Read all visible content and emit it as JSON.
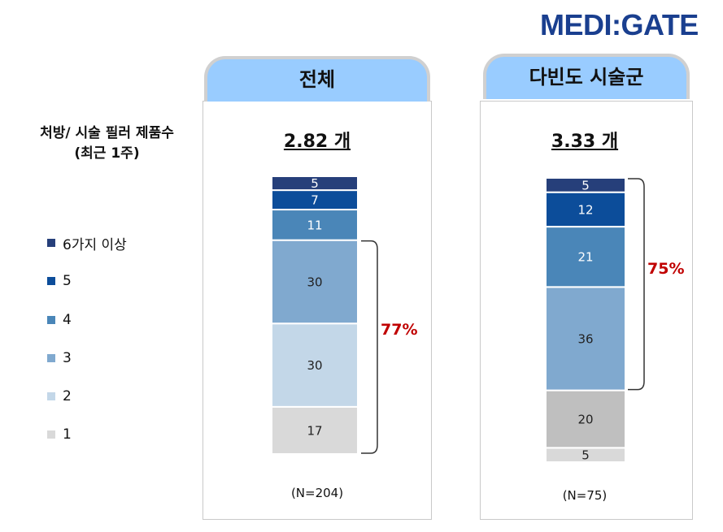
{
  "logo": "MEDI:GATE",
  "left_title": {
    "line1": "처방/ 시술 필러 제품수",
    "line2": "(최근 1주)"
  },
  "legend": [
    {
      "label": "6가지 이상",
      "color": "#263f7a"
    },
    {
      "label": "5",
      "color": "#0c4d9a"
    },
    {
      "label": "4",
      "color": "#4a86b8"
    },
    {
      "label": "3",
      "color": "#80a9cf"
    },
    {
      "label": "2",
      "color": "#c3d7e8"
    },
    {
      "label": "1",
      "color": "#d9d9d9"
    }
  ],
  "panels": [
    {
      "title": "전체",
      "average": "2.82 개",
      "n_label": "(N=204)",
      "bracket_label": "77%"
    },
    {
      "title": "다빈도 시술군",
      "average": "3.33 개",
      "n_label": "(N=75)",
      "bracket_label": "75%"
    }
  ],
  "chart_data": [
    {
      "type": "bar",
      "stacked": true,
      "title": "전체",
      "subtitle": "2.82 개",
      "note": "(N=204)",
      "unit": "%",
      "categories": [
        "전체"
      ],
      "series": [
        {
          "name": "1",
          "values": [
            17
          ],
          "color": "#d9d9d9"
        },
        {
          "name": "2",
          "values": [
            30
          ],
          "color": "#c3d7e8"
        },
        {
          "name": "3",
          "values": [
            30
          ],
          "color": "#80a9cf"
        },
        {
          "name": "4",
          "values": [
            11
          ],
          "color": "#4a86b8"
        },
        {
          "name": "5",
          "values": [
            7
          ],
          "color": "#0c4d9a"
        },
        {
          "name": "6가지 이상",
          "values": [
            5
          ],
          "color": "#263f7a"
        }
      ],
      "bracket": {
        "from_series": "1",
        "to_series": "3",
        "label": "77%"
      },
      "legend": "left",
      "grid": false
    },
    {
      "type": "bar",
      "stacked": true,
      "title": "다빈도 시술군",
      "subtitle": "3.33 개",
      "note": "(N=75)",
      "unit": "%",
      "categories": [
        "다빈도 시술군"
      ],
      "series": [
        {
          "name": "1",
          "values": [
            5
          ],
          "color": "#d9d9d9"
        },
        {
          "name": "2",
          "values": [
            20
          ],
          "color": "#bfbfbf"
        },
        {
          "name": "3",
          "values": [
            36
          ],
          "color": "#80a9cf"
        },
        {
          "name": "4",
          "values": [
            21
          ],
          "color": "#4a86b8"
        },
        {
          "name": "5",
          "values": [
            12
          ],
          "color": "#0c4d9a"
        },
        {
          "name": "6가지 이상",
          "values": [
            5
          ],
          "color": "#263f7a"
        }
      ],
      "bracket": {
        "from_series": "3",
        "to_series": "6가지 이상",
        "label": "75%"
      },
      "legend": "left",
      "grid": false
    }
  ]
}
